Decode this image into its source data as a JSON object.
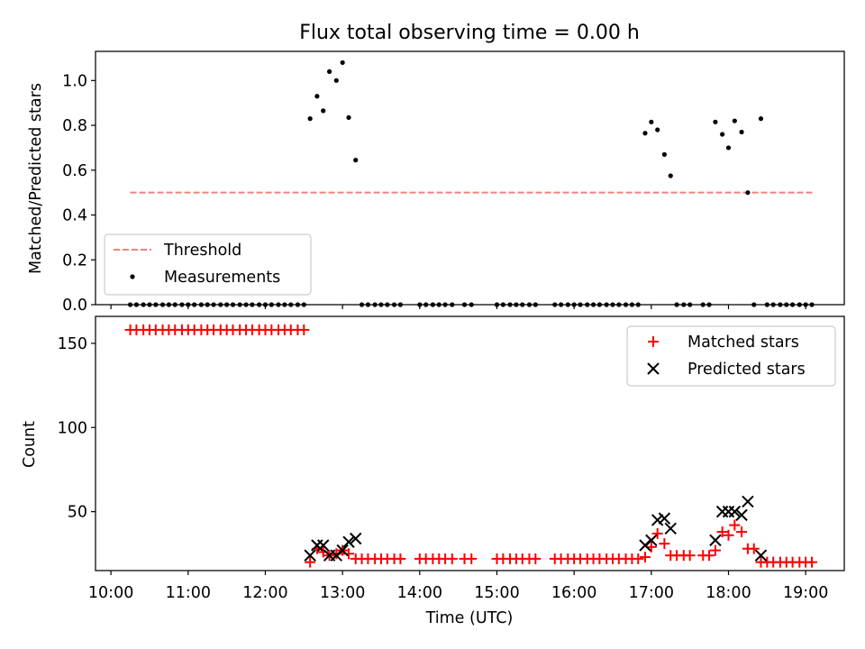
{
  "figure_title": "Flux total observing time = 0.00 h",
  "chart_data": [
    {
      "type": "scatter",
      "ylabel": "Matched/Predicted stars",
      "ylim": [
        0,
        1.13
      ],
      "xlim": [
        9.8,
        19.5
      ],
      "yticks": [
        0.0,
        0.2,
        0.4,
        0.6,
        0.8,
        1.0
      ],
      "ytick_labels": [
        "0.0",
        "0.2",
        "0.4",
        "0.6",
        "0.8",
        "1.0"
      ],
      "legend": {
        "placement": "lower-left",
        "entries": [
          "Threshold",
          "Measurements"
        ]
      },
      "threshold": {
        "name": "Threshold",
        "value": 0.5,
        "x_start": 10.25,
        "x_end": 19.1,
        "color": "#f08080"
      },
      "measurements": {
        "name": "Measurements",
        "color": "#000000",
        "x": [
          10.25,
          10.33,
          10.42,
          10.5,
          10.58,
          10.67,
          10.75,
          10.83,
          10.92,
          11.0,
          11.08,
          11.17,
          11.25,
          11.33,
          11.42,
          11.5,
          11.58,
          11.67,
          11.75,
          11.83,
          11.92,
          12.0,
          12.08,
          12.17,
          12.25,
          12.33,
          12.42,
          12.5,
          12.58,
          12.67,
          12.75,
          12.83,
          12.92,
          13.0,
          13.08,
          13.17,
          13.25,
          13.33,
          13.42,
          13.5,
          13.58,
          13.67,
          13.75,
          14.0,
          14.08,
          14.17,
          14.25,
          14.33,
          14.42,
          14.58,
          14.67,
          15.0,
          15.08,
          15.17,
          15.25,
          15.33,
          15.42,
          15.5,
          15.75,
          15.83,
          15.92,
          16.0,
          16.08,
          16.17,
          16.25,
          16.33,
          16.42,
          16.5,
          16.58,
          16.67,
          16.75,
          16.83,
          16.92,
          17.0,
          17.08,
          17.17,
          17.25,
          17.33,
          17.42,
          17.5,
          17.67,
          17.75,
          17.83,
          17.92,
          18.0,
          18.08,
          18.17,
          18.25,
          18.33,
          18.42,
          18.5,
          18.58,
          18.67,
          18.75,
          18.83,
          18.92,
          19.0,
          19.08
        ],
        "y": [
          0,
          0,
          0,
          0,
          0,
          0,
          0,
          0,
          0,
          0,
          0,
          0,
          0,
          0,
          0,
          0,
          0,
          0,
          0,
          0,
          0,
          0,
          0,
          0,
          0,
          0,
          0,
          0,
          0.83,
          0.93,
          0.865,
          1.04,
          1.0,
          1.08,
          0.835,
          0.645,
          0,
          0,
          0,
          0,
          0,
          0,
          0,
          0,
          0,
          0,
          0,
          0,
          0,
          0,
          0,
          0,
          0,
          0,
          0,
          0,
          0,
          0,
          0,
          0,
          0,
          0,
          0,
          0,
          0,
          0,
          0,
          0,
          0,
          0,
          0,
          0,
          0.765,
          0.815,
          0.78,
          0.67,
          0.575,
          0,
          0,
          0,
          0,
          0,
          0.815,
          0.76,
          0.7,
          0.82,
          0.77,
          0.5,
          0,
          0.83,
          0,
          0,
          0,
          0,
          0,
          0,
          0,
          0
        ]
      },
      "grid": false
    },
    {
      "type": "scatter",
      "title": "",
      "xlabel": "Time (UTC)",
      "ylabel": "Count",
      "ylim": [
        15,
        166
      ],
      "xlim": [
        9.8,
        19.5
      ],
      "xticks": [
        10,
        11,
        12,
        13,
        14,
        15,
        16,
        17,
        18,
        19
      ],
      "xtick_labels": [
        "10:00",
        "11:00",
        "12:00",
        "13:00",
        "14:00",
        "15:00",
        "16:00",
        "17:00",
        "18:00",
        "19:00"
      ],
      "yticks": [
        50,
        100,
        150
      ],
      "ytick_labels": [
        "50",
        "100",
        "150"
      ],
      "legend": {
        "placement": "top-right",
        "entries": [
          "Matched stars",
          "Predicted stars"
        ]
      },
      "series": [
        {
          "name": "Matched stars",
          "marker": "plus",
          "color": "#ff0000",
          "x": [
            10.25,
            10.33,
            10.42,
            10.5,
            10.58,
            10.67,
            10.75,
            10.83,
            10.92,
            11.0,
            11.08,
            11.17,
            11.25,
            11.33,
            11.42,
            11.5,
            11.58,
            11.67,
            11.75,
            11.83,
            11.92,
            12.0,
            12.08,
            12.17,
            12.25,
            12.33,
            12.42,
            12.5,
            12.58,
            12.67,
            12.75,
            12.83,
            12.92,
            13.0,
            13.08,
            13.17,
            13.25,
            13.33,
            13.42,
            13.5,
            13.58,
            13.67,
            13.75,
            14.0,
            14.08,
            14.17,
            14.25,
            14.33,
            14.42,
            14.58,
            14.67,
            15.0,
            15.08,
            15.17,
            15.25,
            15.33,
            15.42,
            15.5,
            15.75,
            15.83,
            15.92,
            16.0,
            16.08,
            16.17,
            16.25,
            16.33,
            16.42,
            16.5,
            16.58,
            16.67,
            16.75,
            16.83,
            16.92,
            17.0,
            17.08,
            17.17,
            17.25,
            17.33,
            17.42,
            17.5,
            17.67,
            17.75,
            17.83,
            17.92,
            18.0,
            18.08,
            18.17,
            18.25,
            18.33,
            18.42,
            18.5,
            18.58,
            18.67,
            18.75,
            18.83,
            18.92,
            19.0,
            19.08
          ],
          "y": [
            158,
            158,
            158,
            158,
            158,
            158,
            158,
            158,
            158,
            158,
            158,
            158,
            158,
            158,
            158,
            158,
            158,
            158,
            158,
            158,
            158,
            158,
            158,
            158,
            158,
            158,
            158,
            158,
            20,
            28,
            26,
            24,
            25,
            27,
            25,
            22,
            22,
            22,
            22,
            22,
            22,
            22,
            22,
            22,
            22,
            22,
            22,
            22,
            22,
            22,
            22,
            22,
            22,
            22,
            22,
            22,
            22,
            22,
            22,
            22,
            22,
            22,
            22,
            22,
            22,
            22,
            22,
            22,
            22,
            22,
            22,
            22,
            23,
            29,
            37,
            31,
            24,
            24,
            24,
            24,
            24,
            24,
            27,
            38,
            36,
            42,
            38,
            28,
            28,
            20,
            20,
            20,
            20,
            20,
            20,
            20,
            20,
            20
          ]
        },
        {
          "name": "Predicted stars",
          "marker": "x",
          "color": "#000000",
          "x": [
            12.58,
            12.67,
            12.75,
            12.83,
            12.92,
            13.0,
            13.08,
            13.17,
            16.92,
            17.0,
            17.08,
            17.17,
            17.25,
            17.83,
            17.92,
            18.0,
            18.08,
            18.17,
            18.25,
            18.42
          ],
          "y": [
            24,
            30,
            30,
            24,
            24,
            27,
            32,
            34,
            30,
            33,
            45,
            46,
            40,
            33,
            50,
            50,
            50,
            48,
            56,
            24
          ]
        }
      ],
      "grid": false
    }
  ]
}
